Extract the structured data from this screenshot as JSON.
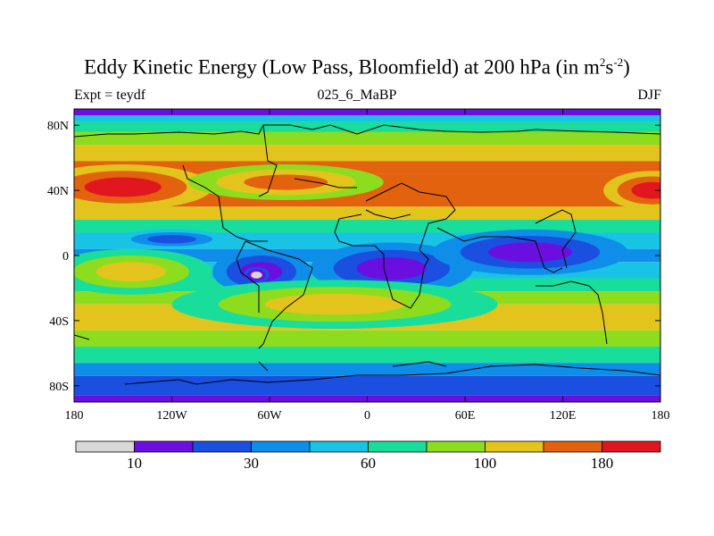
{
  "title": {
    "main": "Eddy Kinetic Energy (Low Pass, Bloomfield) at 200 hPa (in m",
    "sup1": "2",
    "mid": "s",
    "sup2": "-2",
    "close": ")"
  },
  "subtitle_left": "Expt = teydf",
  "subtitle_center": "025_6_MaBP",
  "subtitle_right": "DJF",
  "chart_data": {
    "type": "heatmap",
    "title": "Eddy Kinetic Energy (Low Pass, Bloomfield) at 200 hPa (in m2s-2)",
    "x_ticks": [
      "180",
      "120W",
      "60W",
      "0",
      "60E",
      "120E",
      "180"
    ],
    "x_tick_values": [
      -180,
      -120,
      -60,
      0,
      60,
      120,
      180
    ],
    "y_ticks": [
      "80N",
      "40N",
      "0",
      "40S",
      "80S"
    ],
    "y_tick_values": [
      80,
      40,
      0,
      -40,
      -80
    ],
    "xlim": [
      -180,
      180
    ],
    "ylim": [
      -90,
      90
    ],
    "colorbar": {
      "labels": [
        "10",
        "30",
        "60",
        "100",
        "180"
      ],
      "label_after_bin": [
        0,
        2,
        4,
        6,
        8
      ],
      "colors": [
        "#d8d8d8",
        "#6a0fe0",
        "#1a4fe0",
        "#0e8ee8",
        "#18c3e6",
        "#19dd9a",
        "#8ddc1e",
        "#e3c41c",
        "#e2620e",
        "#e2161e"
      ]
    },
    "field_features": [
      {
        "lon": -150,
        "lat": 42,
        "level": 9,
        "lon_width": 55,
        "lat_width": 14
      },
      {
        "lon": -50,
        "lat": 45,
        "level": 8,
        "lon_width": 60,
        "lat_width": 11
      },
      {
        "lon": 175,
        "lat": 40,
        "level": 9,
        "lon_width": 30,
        "lat_width": 12
      },
      {
        "lon": -120,
        "lat": 10,
        "level": 2,
        "lon_width": 35,
        "lat_width": 6
      },
      {
        "lon": -65,
        "lat": -10,
        "level": 1,
        "lon_width": 30,
        "lat_width": 14
      },
      {
        "lon": -68,
        "lat": -12,
        "level": 0,
        "lon_width": 8,
        "lat_width": 5
      },
      {
        "lon": 15,
        "lat": -8,
        "level": 1,
        "lon_width": 50,
        "lat_width": 16
      },
      {
        "lon": 100,
        "lat": 2,
        "level": 1,
        "lon_width": 60,
        "lat_width": 14
      },
      {
        "lon": -145,
        "lat": -10,
        "level": 7,
        "lon_width": 50,
        "lat_width": 14
      },
      {
        "lon": -20,
        "lat": -30,
        "level": 7,
        "lon_width": 100,
        "lat_width": 15
      }
    ]
  }
}
